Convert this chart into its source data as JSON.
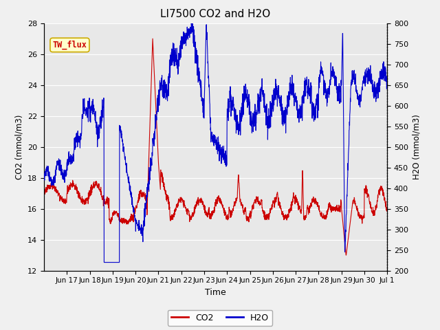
{
  "title": "LI7500 CO2 and H2O",
  "xlabel": "Time",
  "ylabel_left": "CO2 (mmol/m3)",
  "ylabel_right": "H2O (mmol/m3)",
  "ylim_left": [
    12,
    28
  ],
  "ylim_right": [
    200,
    800
  ],
  "yticks_left": [
    12,
    14,
    16,
    18,
    20,
    22,
    24,
    26,
    28
  ],
  "yticks_right": [
    200,
    250,
    300,
    350,
    400,
    450,
    500,
    550,
    600,
    650,
    700,
    750,
    800
  ],
  "bg_color": "#e8e8e8",
  "fig_color": "#f0f0f0",
  "co2_color": "#cc0000",
  "h2o_color": "#0000cc",
  "annotation_text": "TW_flux",
  "annotation_color": "#cc0000",
  "annotation_bg": "#ffffcc",
  "annotation_border": "#ccaa00",
  "grid_color": "#ffffff",
  "tick_label_size": 8,
  "title_size": 11,
  "tick_days": [
    1,
    2,
    3,
    4,
    5,
    6,
    7,
    8,
    9,
    10,
    11,
    12,
    13,
    14,
    15
  ],
  "tick_labels": [
    "Jun 17",
    "Jun 18",
    "Jun 19",
    "Jun 20",
    "Jun 21",
    "Jun 22",
    "Jun 23",
    "Jun 24",
    "Jun 25",
    "Jun 26",
    "Jun 27",
    "Jun 28",
    "Jun 29",
    "Jun 30",
    "Jul 1"
  ]
}
